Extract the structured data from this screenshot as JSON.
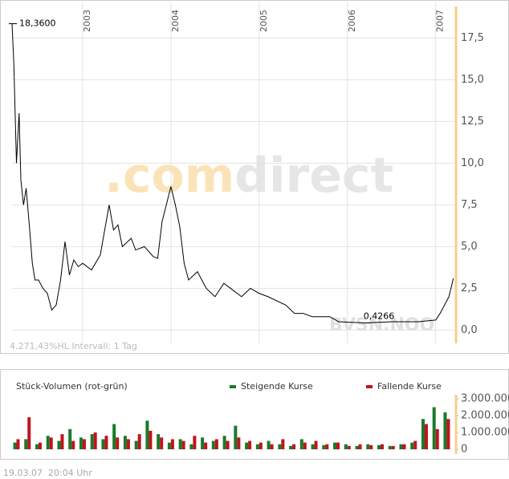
{
  "chart_data": [
    {
      "type": "line",
      "x": [
        2002.2,
        2002.22,
        2002.25,
        2002.28,
        2002.3,
        2002.33,
        2002.36,
        2002.4,
        2002.43,
        2002.46,
        2002.5,
        2002.55,
        2002.6,
        2002.65,
        2002.7,
        2002.75,
        2002.8,
        2002.85,
        2002.9,
        2002.95,
        2003.0,
        2003.1,
        2003.2,
        2003.3,
        2003.35,
        2003.4,
        2003.45,
        2003.55,
        2003.6,
        2003.7,
        2003.8,
        2003.85,
        2003.9,
        2004.0,
        2004.05,
        2004.1,
        2004.15,
        2004.2,
        2004.3,
        2004.4,
        2004.5,
        2004.6,
        2004.7,
        2004.8,
        2004.9,
        2005.0,
        2005.1,
        2005.3,
        2005.4,
        2005.5,
        2005.6,
        2005.8,
        2005.9,
        2006.2,
        2006.5,
        2006.8,
        2007.0,
        2007.05,
        2007.1,
        2007.15,
        2007.2
      ],
      "series": [
        {
          "name": "BVSN.NOO",
          "color": "#000000",
          "values": [
            18.36,
            16,
            10,
            13,
            9,
            7.5,
            8.5,
            6,
            4,
            3,
            3.0,
            2.5,
            2.2,
            1.2,
            1.5,
            3,
            5.3,
            3.3,
            4.2,
            3.8,
            4.0,
            3.6,
            4.5,
            7.5,
            6.0,
            6.3,
            5.0,
            5.5,
            4.8,
            5.0,
            4.4,
            4.3,
            6.5,
            8.6,
            7.5,
            6.2,
            4.0,
            3.0,
            3.5,
            2.5,
            2.0,
            2.8,
            2.4,
            2.0,
            2.5,
            2.2,
            2.0,
            1.5,
            1.0,
            1.0,
            0.8,
            0.8,
            0.5,
            0.4266,
            0.5,
            0.5,
            0.6,
            1.0,
            1.5,
            2.0,
            3.1
          ]
        }
      ],
      "xlim": [
        2002.2,
        2007.23
      ],
      "xticks": [
        2003,
        2004,
        2005,
        2006,
        2007
      ],
      "ylim": [
        -0.8,
        19.3
      ],
      "yticks": [
        {
          "value": 0,
          "label": "0,0"
        },
        {
          "value": 2.5,
          "label": "2,5"
        },
        {
          "value": 5,
          "label": "5,0"
        },
        {
          "value": 7.5,
          "label": "7,5"
        },
        {
          "value": 10,
          "label": "10,0"
        },
        {
          "value": 12.5,
          "label": "12,5"
        },
        {
          "value": 15,
          "label": "15,0"
        },
        {
          "value": 17.5,
          "label": "17,5"
        }
      ],
      "grid": true,
      "annotations": [
        {
          "value": 18.36,
          "label": "18,3600"
        },
        {
          "value": 0.4266,
          "label": "0,4266"
        }
      ],
      "info": "4.271,43%HL Intervall: 1 Tag",
      "watermark": [
        ".com",
        "direct"
      ],
      "watermark_symbol": "BVSN.NOO"
    },
    {
      "type": "volume",
      "title": "Stück-Volumen (rot-grün)",
      "x": [
        2002.25,
        2002.375,
        2002.5,
        2002.625,
        2002.75,
        2002.875,
        2003.0,
        2003.125,
        2003.25,
        2003.375,
        2003.5,
        2003.625,
        2003.75,
        2003.875,
        2004.0,
        2004.125,
        2004.25,
        2004.375,
        2004.5,
        2004.625,
        2004.75,
        2004.875,
        2005.0,
        2005.125,
        2005.25,
        2005.375,
        2005.5,
        2005.625,
        2005.75,
        2005.875,
        2006.0,
        2006.125,
        2006.25,
        2006.375,
        2006.5,
        2006.625,
        2006.75,
        2006.875,
        2007.0,
        2007.125
      ],
      "series": [
        {
          "name": "Steigende Kurse",
          "color": "#1a7a2a",
          "values": [
            400000,
            600000,
            300000,
            800000,
            500000,
            1200000,
            700000,
            900000,
            600000,
            1500000,
            800000,
            500000,
            1700000,
            900000,
            400000,
            600000,
            300000,
            700000,
            500000,
            800000,
            1400000,
            400000,
            300000,
            500000,
            300000,
            200000,
            600000,
            300000,
            250000,
            400000,
            300000,
            200000,
            300000,
            250000,
            200000,
            300000,
            400000,
            1800000,
            2500000,
            2200000
          ]
        },
        {
          "name": "Fallende Kurse",
          "color": "#c0141c",
          "values": [
            600000,
            1900000,
            400000,
            700000,
            900000,
            500000,
            600000,
            1000000,
            800000,
            700000,
            600000,
            900000,
            1100000,
            700000,
            600000,
            500000,
            800000,
            400000,
            600000,
            500000,
            700000,
            500000,
            400000,
            300000,
            600000,
            300000,
            400000,
            500000,
            300000,
            400000,
            200000,
            300000,
            250000,
            300000,
            200000,
            300000,
            500000,
            1500000,
            1200000,
            1800000
          ]
        }
      ],
      "xlim": [
        2002.2,
        2007.23
      ],
      "ylim": [
        0,
        3240000
      ],
      "yticks": [
        0,
        {
          "value": 1000000,
          "label": "1.000.000"
        },
        {
          "value": 2000000,
          "label": "2.000.000"
        },
        {
          "value": 3000000,
          "label": "3.000.000"
        }
      ]
    }
  ],
  "footer": {
    "date": "19.03.07",
    "time": "20:04 Uhr"
  }
}
